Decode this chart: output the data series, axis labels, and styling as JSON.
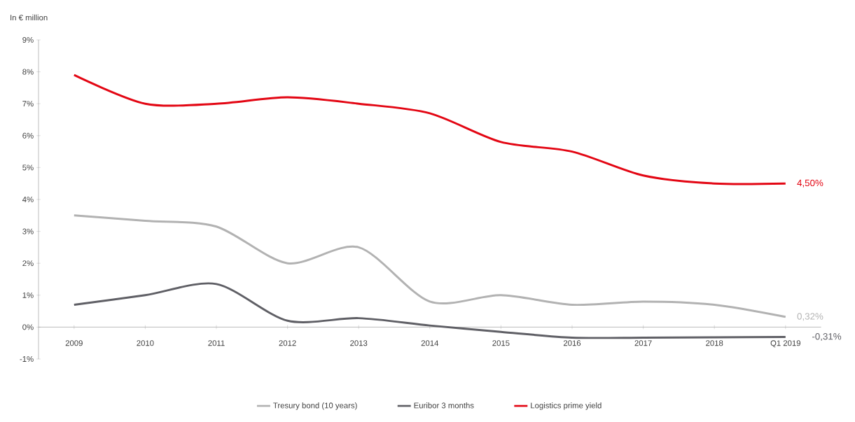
{
  "chart_data": {
    "type": "line",
    "ylabel": "In € million",
    "categories": [
      "2009",
      "2010",
      "2011",
      "2012",
      "2013",
      "2014",
      "2015",
      "2016",
      "2017",
      "2018",
      "Q1 2019"
    ],
    "series": [
      {
        "name": "Tresury bond (10 years)",
        "color": "#b2b2b2",
        "values": [
          3.5,
          3.33,
          3.15,
          2.0,
          2.5,
          0.8,
          1.0,
          0.7,
          0.8,
          0.7,
          0.32
        ]
      },
      {
        "name": "Euribor 3 months",
        "color": "#5f5f65",
        "values": [
          0.7,
          1.0,
          1.35,
          0.2,
          0.28,
          0.05,
          -0.15,
          -0.33,
          -0.33,
          -0.32,
          -0.31
        ]
      },
      {
        "name": "Logistics prime yield",
        "color": "#e30613",
        "values": [
          7.9,
          7.0,
          7.0,
          7.2,
          7.0,
          6.7,
          5.8,
          5.5,
          4.75,
          4.5,
          4.5
        ]
      }
    ],
    "annotations": [
      {
        "text": "0,32%",
        "x": "Q1 2019",
        "y": 0.32
      },
      {
        "text": "-0,31%",
        "x": "Q1 2019",
        "y": -0.31
      },
      {
        "text": "4,50%",
        "x": "Q1 2019",
        "y": 4.5
      }
    ],
    "ylim": [
      -1,
      9
    ],
    "yticks": [
      {
        "value": -1,
        "label": "-1%"
      },
      {
        "value": 0,
        "label": "0%"
      },
      {
        "value": 1,
        "label": "1%"
      },
      {
        "value": 2,
        "label": "2%"
      },
      {
        "value": 3,
        "label": "3%"
      },
      {
        "value": 4,
        "label": "4%"
      },
      {
        "value": 5,
        "label": "5%"
      },
      {
        "value": 6,
        "label": "6%"
      },
      {
        "value": 7,
        "label": "7%"
      },
      {
        "value": 8,
        "label": "8%"
      },
      {
        "value": 9,
        "label": "9%"
      }
    ],
    "grid": false,
    "legend": "bottom",
    "marker": "none",
    "line_style": "solid"
  }
}
